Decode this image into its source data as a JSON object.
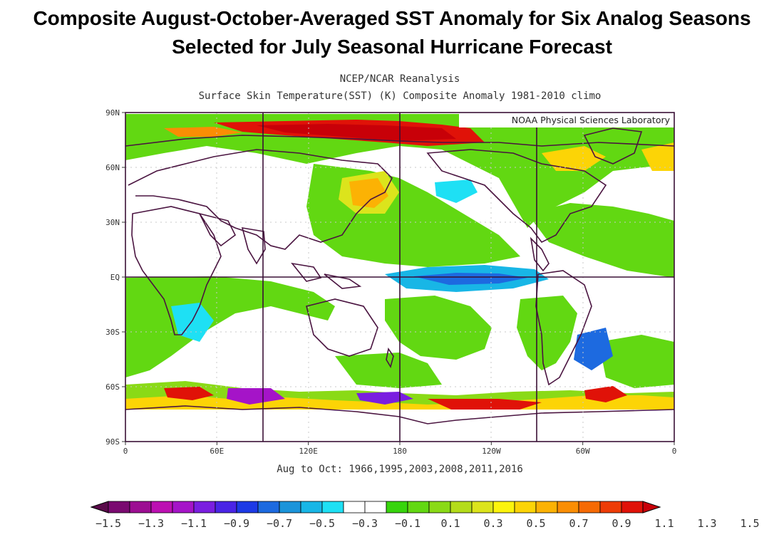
{
  "title": {
    "line1": "Composite August-October-Averaged SST Anomaly for Six Analog Seasons",
    "line2": "Selected for July Seasonal Hurricane Forecast"
  },
  "map": {
    "header_line1": "NCEP/NCAR Reanalysis",
    "header_line2": "Surface Skin Temperature(SST) (K) Composite Anomaly 1981-2010 climo",
    "credit": "NOAA Physical Sciences Laboratory",
    "footer": "Aug to Oct: 1966,1995,2003,2008,2011,2016",
    "lat_labels": [
      "90N",
      "60N",
      "30N",
      "EQ",
      "30S",
      "60S",
      "90S"
    ],
    "lon_labels": [
      "0",
      "60E",
      "120E",
      "180",
      "120W",
      "60W",
      "0"
    ]
  },
  "colorbar": {
    "labels": [
      "-1.5",
      "-1.3",
      "-1.1",
      "-0.9",
      "-0.7",
      "-0.5",
      "-0.3",
      "-0.1",
      "0.1",
      "0.3",
      "0.5",
      "0.7",
      "0.9",
      "1.1",
      "1.3",
      "1.5"
    ],
    "colors": [
      "#5a0a4a",
      "#7a0a70",
      "#9c0e92",
      "#bc10b2",
      "#a514c8",
      "#7a1ee0",
      "#4a24e6",
      "#1d3ae6",
      "#1d6ae0",
      "#1b94da",
      "#18b6e6",
      "#1ee0f4",
      "#ffffff",
      "#ffffff",
      "#37d40c",
      "#62d812",
      "#8ada16",
      "#b4dc1a",
      "#dce41c",
      "#fcf40c",
      "#fcd406",
      "#fcb204",
      "#fa8e04",
      "#f66a04",
      "#ee3c06",
      "#e01208",
      "#c80008"
    ]
  }
}
